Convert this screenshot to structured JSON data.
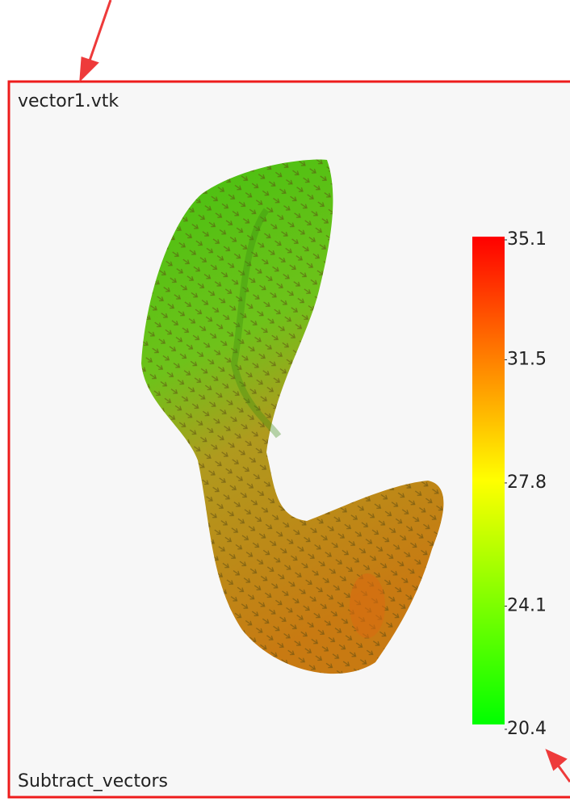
{
  "viewport": {
    "title": "vector1.vtk",
    "footer": "Subtract_vectors"
  },
  "colorbar": {
    "range": [
      20.4,
      35.1
    ],
    "ticks": [
      35.1,
      31.5,
      27.8,
      24.1,
      20.4
    ]
  }
}
